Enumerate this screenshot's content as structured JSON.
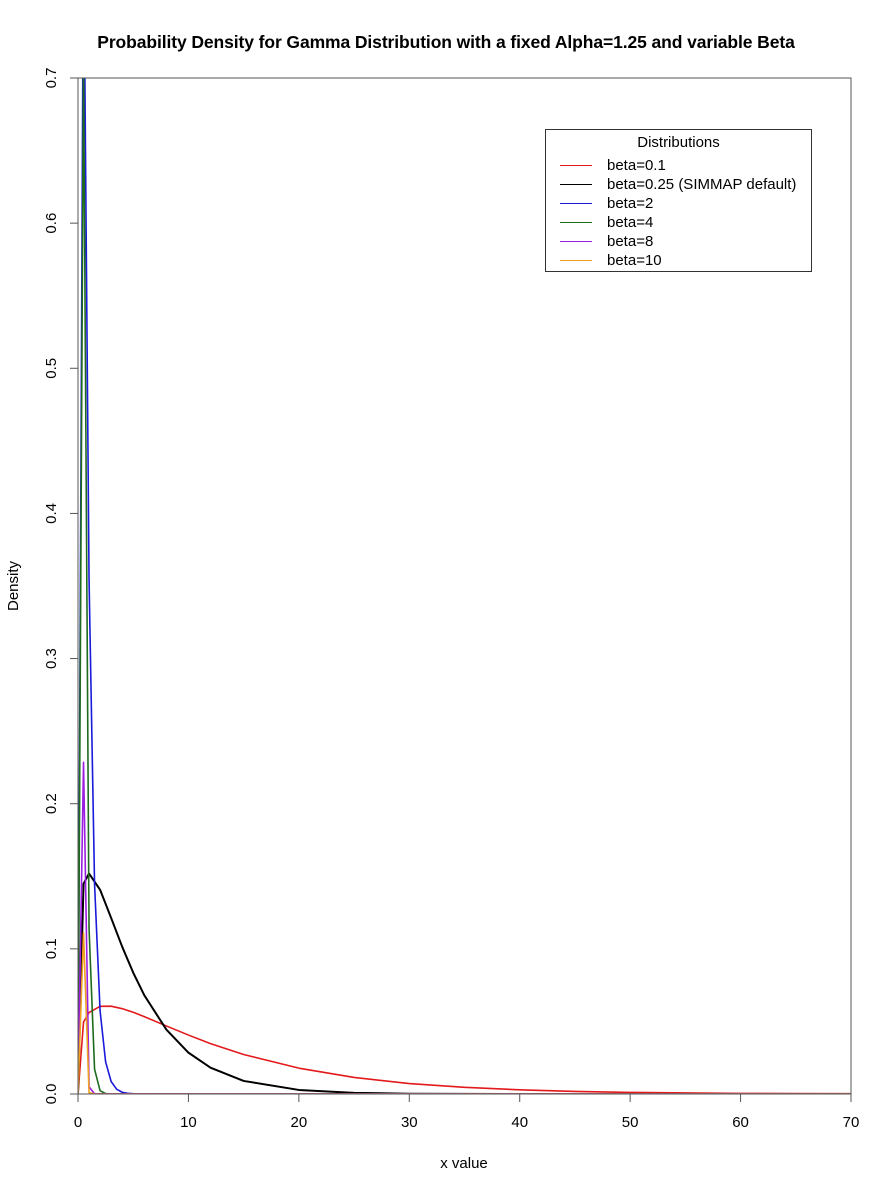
{
  "chart_data": {
    "type": "line",
    "title": "Probability Density for Gamma Distribution with a fixed Alpha=1.25 and variable Beta",
    "xlabel": "x value",
    "ylabel": "Density",
    "xlim": [
      0,
      70
    ],
    "ylim": [
      0,
      0.7
    ],
    "x_ticks": [
      0,
      10,
      20,
      30,
      40,
      50,
      60,
      70
    ],
    "y_ticks": [
      "0.0",
      "0.1",
      "0.2",
      "0.3",
      "0.4",
      "0.5",
      "0.6",
      "0.7"
    ],
    "grid": false,
    "legend": {
      "title": "Distributions",
      "position": "top-right"
    },
    "series": [
      {
        "name": "beta=0.1",
        "color": "#e31a1c",
        "x": [
          0,
          0.5,
          1,
          2,
          3,
          4,
          5,
          6,
          8,
          10,
          12,
          15,
          20,
          25,
          30,
          35,
          40,
          45,
          50,
          55,
          60,
          65,
          70
        ],
        "values": [
          0,
          0.0496,
          0.0561,
          0.0604,
          0.0605,
          0.0588,
          0.0563,
          0.0533,
          0.0469,
          0.0406,
          0.0347,
          0.0272,
          0.0178,
          0.0114,
          0.0072,
          0.0046,
          0.0029,
          0.0018,
          0.0011,
          0.0007,
          0.0004,
          0.0003,
          0.0002
        ]
      },
      {
        "name": "beta=0.25 (SIMMAP default)",
        "color": "#000000",
        "x": [
          0,
          0.5,
          1,
          2,
          3,
          4,
          5,
          6,
          8,
          10,
          12,
          15,
          20,
          25,
          30,
          40,
          70
        ],
        "values": [
          0,
          0.1448,
          0.1519,
          0.1407,
          0.1213,
          0.1015,
          0.0836,
          0.0681,
          0.0444,
          0.0285,
          0.0181,
          0.009,
          0.0028,
          0.0008,
          0.0002,
          0.0,
          0.0
        ]
      },
      {
        "name": "beta=2",
        "color": "#1a1adb",
        "x": [
          0,
          0.5,
          1,
          1.5,
          2,
          2.5,
          3,
          3.5,
          4,
          4.5,
          5,
          70
        ],
        "values": [
          0,
          0.812,
          0.355,
          0.1446,
          0.0572,
          0.0222,
          0.0086,
          0.0033,
          0.0012,
          0.0005,
          0.0002,
          0
        ]
      },
      {
        "name": "beta=4",
        "color": "#1e6b1e",
        "x": [
          0,
          0.5,
          1,
          1.5,
          2,
          2.5,
          3,
          70
        ],
        "values": [
          0,
          0.71,
          0.1143,
          0.0171,
          0.0023,
          0.0003,
          0.0,
          0
        ]
      },
      {
        "name": "beta=8",
        "color": "#9b1ee0",
        "x": [
          0,
          0.5,
          1,
          1.5,
          70
        ],
        "values": [
          0,
          0.2285,
          0.005,
          0.0001,
          0
        ]
      },
      {
        "name": "beta=10",
        "color": "#f0a020",
        "x": [
          0,
          0.5,
          1,
          1.5,
          70
        ],
        "values": [
          0,
          0.111,
          0.0009,
          0.0,
          0
        ]
      }
    ]
  }
}
